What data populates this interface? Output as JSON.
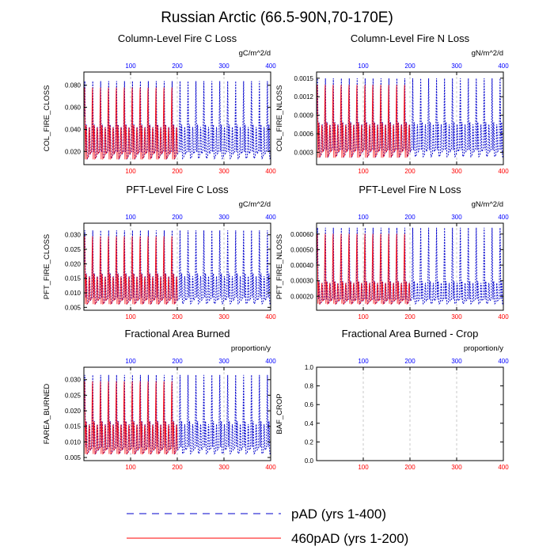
{
  "figure_title": "Russian Arctic (66.5-90N,70-170E)",
  "colors": {
    "top_axis": "#0000ff",
    "bottom_axis": "#ff0000",
    "series_pad": "#0000cc",
    "series_460": "#ff0000",
    "gridline": "#bbbbbb"
  },
  "legend": [
    {
      "label": "pAD (yrs 1-400)",
      "color": "#0000cc",
      "style": "dashed"
    },
    {
      "label": "460pAD (yrs 1-200)",
      "color": "#ff0000",
      "style": "solid"
    }
  ],
  "chart_data": [
    {
      "type": "line",
      "title": "Column-Level Fire C Loss",
      "ylabel": "COL_FIRE_CLOSS",
      "units": "gC/m^2/d",
      "xlim": [
        0,
        400
      ],
      "xticks": [
        "100",
        "200",
        "300",
        "400"
      ],
      "ylim": [
        0.008,
        0.092
      ],
      "yticks": [
        "0.020",
        "0.040",
        "0.060",
        "0.080"
      ],
      "pattern": {
        "period_years": 17,
        "peak": 0.085,
        "base": 0.02,
        "low": 0.011,
        "mid": 0.045
      },
      "series": [
        {
          "name": "pAD (yrs 1-400)",
          "years": [
            1,
            400
          ]
        },
        {
          "name": "460pAD (yrs 1-200)",
          "years": [
            1,
            200
          ]
        }
      ]
    },
    {
      "type": "line",
      "title": "Column-Level Fire N Loss",
      "ylabel": "COL_FIRE_NLOSS",
      "units": "gN/m^2/d",
      "xlim": [
        0,
        400
      ],
      "xticks": [
        "100",
        "200",
        "300",
        "400"
      ],
      "ylim": [
        0.0001,
        0.0016
      ],
      "yticks": [
        "0.0003",
        "0.0006",
        "0.0009",
        "0.0012",
        "0.0015"
      ],
      "pattern": {
        "period_years": 17,
        "peak": 0.00152,
        "base": 0.00035,
        "low": 0.00018,
        "mid": 0.0008
      },
      "series": [
        {
          "name": "pAD (yrs 1-400)",
          "years": [
            1,
            400
          ]
        },
        {
          "name": "460pAD (yrs 1-200)",
          "years": [
            1,
            200
          ]
        }
      ]
    },
    {
      "type": "line",
      "title": "PFT-Level Fire C Loss",
      "ylabel": "PFT_FIRE_CLOSS",
      "units": "gC/m^2/d",
      "xlim": [
        0,
        400
      ],
      "xticks": [
        "100",
        "200",
        "300",
        "400"
      ],
      "ylim": [
        0.004,
        0.034
      ],
      "yticks": [
        "0.005",
        "0.010",
        "0.015",
        "0.020",
        "0.025",
        "0.030"
      ],
      "pattern": {
        "period_years": 17,
        "peak": 0.032,
        "base": 0.008,
        "low": 0.0055,
        "mid": 0.017
      },
      "series": [
        {
          "name": "pAD (yrs 1-400)",
          "years": [
            1,
            400
          ]
        },
        {
          "name": "460pAD (yrs 1-200)",
          "years": [
            1,
            200
          ]
        }
      ]
    },
    {
      "type": "line",
      "title": "PFT-Level Fire N Loss",
      "ylabel": "PFT_FIRE_NLOSS",
      "units": "gN/m^2/d",
      "xlim": [
        0,
        400
      ],
      "xticks": [
        "100",
        "200",
        "300",
        "400"
      ],
      "ylim": [
        0.00011,
        0.00067
      ],
      "yticks": [
        "0.00020",
        "0.00030",
        "0.00040",
        "0.00050",
        "0.00060"
      ],
      "pattern": {
        "period_years": 17,
        "peak": 0.00065,
        "base": 0.00018,
        "low": 0.00014,
        "mid": 0.0003
      },
      "series": [
        {
          "name": "pAD (yrs 1-400)",
          "years": [
            1,
            400
          ]
        },
        {
          "name": "460pAD (yrs 1-200)",
          "years": [
            1,
            200
          ]
        }
      ]
    },
    {
      "type": "line",
      "title": "Fractional Area Burned",
      "ylabel": "FAREA_BURNED",
      "units": "proportion/y",
      "xlim": [
        0,
        400
      ],
      "xticks": [
        "100",
        "200",
        "300",
        "400"
      ],
      "ylim": [
        0.004,
        0.034
      ],
      "yticks": [
        "0.005",
        "0.010",
        "0.015",
        "0.020",
        "0.025",
        "0.030"
      ],
      "pattern": {
        "period_years": 17,
        "peak": 0.032,
        "base": 0.008,
        "low": 0.0055,
        "mid": 0.017
      },
      "series": [
        {
          "name": "pAD (yrs 1-400)",
          "years": [
            1,
            400
          ]
        },
        {
          "name": "460pAD (yrs 1-200)",
          "years": [
            1,
            200
          ]
        }
      ]
    },
    {
      "type": "line",
      "title": "Fractional Area Burned - Crop",
      "ylabel": "BAF_CROP",
      "units": "proportion/y",
      "xlim": [
        0,
        400
      ],
      "xticks": [
        "100",
        "200",
        "300",
        "400"
      ],
      "ylim": [
        0.0,
        1.0
      ],
      "yticks": [
        "0.0",
        "0.2",
        "0.4",
        "0.6",
        "0.8",
        "1.0"
      ],
      "pattern": null,
      "series": []
    }
  ]
}
